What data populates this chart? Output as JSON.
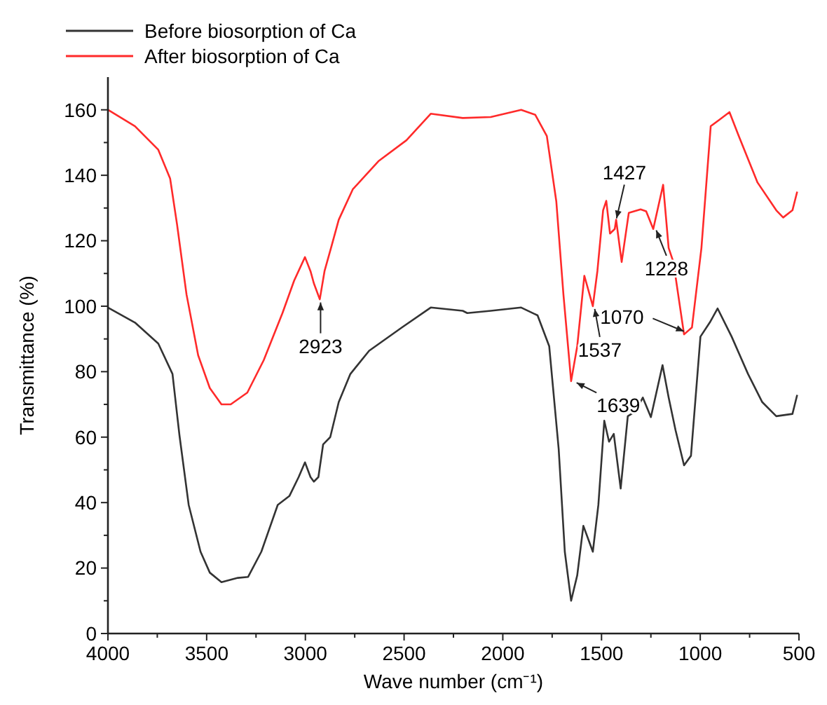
{
  "chart_data": {
    "type": "line",
    "xlabel": "Wave number (cm⁻¹)",
    "ylabel": "Transmittance (%)",
    "xlim": [
      4000,
      500
    ],
    "xticks": [
      4000,
      {
        "value": 3750,
        "label": null
      },
      3500,
      {
        "value": 3250,
        "label": null
      },
      3000,
      {
        "value": 2750,
        "label": null
      },
      2500,
      {
        "value": 2250,
        "label": null
      },
      2000,
      {
        "value": 1750,
        "label": null
      },
      1500,
      {
        "value": 1250,
        "label": null
      },
      1000,
      {
        "value": 750,
        "label": null
      },
      500
    ],
    "ylim": [
      0,
      170
    ],
    "yticks": [
      0,
      {
        "value": 10,
        "label": null
      },
      20,
      {
        "value": 30,
        "label": null
      },
      40,
      {
        "value": 50,
        "label": null
      },
      60,
      {
        "value": 70,
        "label": null
      },
      80,
      {
        "value": 90,
        "label": null
      },
      100,
      {
        "value": 110,
        "label": null
      },
      120,
      {
        "value": 130,
        "label": null
      },
      140,
      {
        "value": 150,
        "label": null
      },
      160
    ],
    "legend": "top left",
    "grid": false,
    "marker": "none",
    "line_style": "solid",
    "series": [
      {
        "name": "Before biosorption of Ca",
        "color": "#333333",
        "x": [
          4000,
          3863,
          3745,
          3673,
          3638,
          3591,
          3531,
          3484,
          3425,
          3342,
          3290,
          3223,
          3140,
          3081,
          3034,
          3002,
          2974,
          2957,
          2934,
          2910,
          2874,
          2831,
          2772,
          2677,
          2511,
          2365,
          2203,
          2180,
          2061,
          1907,
          1824,
          1765,
          1717,
          1686,
          1654,
          1623,
          1592,
          1544,
          1516,
          1486,
          1462,
          1438,
          1403,
          1367,
          1327,
          1291,
          1250,
          1191,
          1160,
          1125,
          1082,
          1047,
          999,
          952,
          912,
          841,
          758,
          686,
          615,
          533,
          509
        ],
        "values": [
          99.6,
          95,
          88.6,
          79.3,
          60.7,
          39.3,
          25,
          18.6,
          15.7,
          17,
          17.3,
          25,
          39.3,
          42,
          47.8,
          52.3,
          47.8,
          46.4,
          47.8,
          57.8,
          60,
          70.7,
          79.3,
          86.4,
          93.5,
          99.6,
          98.6,
          97.9,
          98.6,
          99.6,
          97.2,
          87.8,
          56.4,
          25,
          10,
          17.8,
          32.9,
          25,
          39.3,
          65,
          58.6,
          61,
          44.3,
          66.4,
          67.9,
          72.1,
          66.1,
          82,
          72.1,
          62.1,
          51.4,
          54.3,
          90.7,
          95,
          99.3,
          90.7,
          79.3,
          70.7,
          66.4,
          67.1,
          72.9
        ]
      },
      {
        "name": "After biosorption of Ca",
        "color": "#ff2a2a",
        "x": [
          4000,
          3863,
          3745,
          3685,
          3650,
          3602,
          3543,
          3484,
          3425,
          3378,
          3294,
          3211,
          3116,
          3057,
          3002,
          2974,
          2957,
          2927,
          2903,
          2867,
          2831,
          2760,
          2630,
          2488,
          2365,
          2203,
          2061,
          1907,
          1836,
          1777,
          1729,
          1693,
          1654,
          1623,
          1587,
          1544,
          1521,
          1492,
          1476,
          1457,
          1433,
          1426,
          1398,
          1362,
          1302,
          1274,
          1238,
          1188,
          1160,
          1136,
          1082,
          1042,
          994,
          947,
          900,
          852,
          805,
          710,
          615,
          580,
          533,
          509
        ],
        "values": [
          160,
          155,
          147.8,
          139,
          125,
          103.6,
          85,
          75,
          70,
          70,
          73.6,
          83.5,
          97.9,
          107.8,
          115,
          110.7,
          107,
          102.1,
          110.7,
          118.5,
          126.4,
          135.7,
          144.3,
          150.7,
          158.8,
          157.5,
          157.8,
          160,
          158.5,
          152,
          132,
          103.6,
          77.1,
          87.8,
          109.3,
          100,
          110.7,
          129.3,
          132.2,
          122.2,
          123.6,
          126.4,
          113.5,
          128.5,
          129.6,
          129,
          123.6,
          137.1,
          117.8,
          113.5,
          91.4,
          93.5,
          117.8,
          155,
          157.1,
          159.3,
          152,
          137.8,
          129.3,
          127.1,
          129.3,
          135
        ]
      }
    ],
    "annotations": [
      {
        "text": "2923",
        "x": 2923,
        "y": 102
      },
      {
        "text": "1639",
        "x": 1639,
        "y": 77
      },
      {
        "text": "1537",
        "x": 1537,
        "y": 100
      },
      {
        "text": "1427",
        "x": 1427,
        "y": 126
      },
      {
        "text": "1228",
        "x": 1228,
        "y": 124
      },
      {
        "text": "1070",
        "x": 1070,
        "y": 92
      }
    ]
  }
}
